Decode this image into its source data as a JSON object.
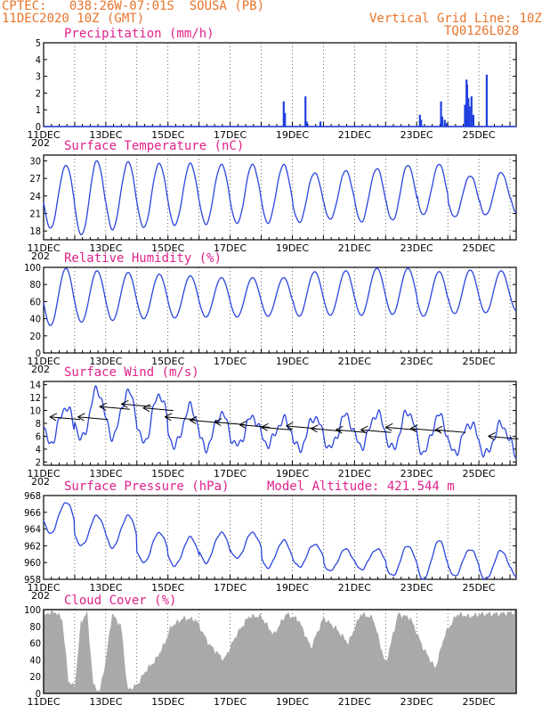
{
  "header": {
    "left_line1": "CPTEC:   038:26W-07:01S  SOUSA (PB)",
    "left_line2": "11DEC2020 10Z (GMT)",
    "right_line1": "Vertical Grid Line: 10Z",
    "right_line2": "TQ0126L028"
  },
  "x_axis": {
    "date_labels": [
      "11DEC",
      "13DEC",
      "15DEC",
      "17DEC",
      "19DEC",
      "21DEC",
      "23DEC",
      "25DEC"
    ],
    "year_fragment": "202"
  },
  "chart_data": [
    {
      "type": "bar",
      "title": "Precipitation (mm/h)",
      "ylim": [
        0,
        5
      ],
      "yticks": [
        0,
        1,
        2,
        3,
        4,
        5
      ],
      "color": "#1f3fe0",
      "x_unit": "days after 11DEC 10Z",
      "events": [
        {
          "x": 7.72,
          "v": 1.5
        },
        {
          "x": 7.76,
          "v": 0.8
        },
        {
          "x": 8.42,
          "v": 1.8
        },
        {
          "x": 8.46,
          "v": 0.3
        },
        {
          "x": 8.9,
          "v": 0.3
        },
        {
          "x": 12.1,
          "v": 0.7
        },
        {
          "x": 12.14,
          "v": 0.4
        },
        {
          "x": 12.78,
          "v": 1.5
        },
        {
          "x": 12.82,
          "v": 0.6
        },
        {
          "x": 12.9,
          "v": 0.4
        },
        {
          "x": 12.95,
          "v": 0.2
        },
        {
          "x": 13.55,
          "v": 1.3
        },
        {
          "x": 13.6,
          "v": 2.8
        },
        {
          "x": 13.62,
          "v": 2.5
        },
        {
          "x": 13.66,
          "v": 1.7
        },
        {
          "x": 13.7,
          "v": 1.2
        },
        {
          "x": 13.76,
          "v": 1.8
        },
        {
          "x": 13.82,
          "v": 0.7
        },
        {
          "x": 14.25,
          "v": 3.1
        }
      ]
    },
    {
      "type": "line",
      "title": "Surface Temperature (nC)",
      "ylim": [
        16.5,
        31
      ],
      "yticks": [
        18,
        21,
        24,
        27,
        30
      ],
      "color": "#2b45dd",
      "days_range": [
        0,
        15.2
      ],
      "daily_max": [
        29.3,
        30.0,
        29.8,
        29.6,
        29.5,
        29.4,
        29.4,
        29.3,
        28.0,
        28.3,
        28.7,
        29.3,
        29.4,
        27.5,
        28.0,
        28.0
      ],
      "daily_min": [
        18.5,
        17.3,
        18.3,
        18.6,
        19.0,
        19.2,
        19.3,
        19.4,
        19.5,
        20.0,
        19.6,
        19.8,
        20.8,
        20.4,
        20.7,
        21.2
      ]
    },
    {
      "type": "line",
      "title": "Relative Humidity (%)",
      "ylim": [
        0,
        100
      ],
      "yticks": [
        0,
        20,
        40,
        60,
        80,
        100
      ],
      "color": "#2b45dd",
      "days_range": [
        0,
        15.2
      ],
      "daily_max": [
        99,
        96,
        94,
        92,
        90,
        88,
        88,
        88,
        95,
        96,
        99,
        99,
        95,
        97,
        96,
        94
      ],
      "daily_min": [
        32,
        36,
        38,
        40,
        41,
        42,
        42,
        43,
        43,
        44,
        44,
        45,
        43,
        46,
        47,
        49
      ]
    },
    {
      "type": "line",
      "title": "Surface Wind (m/s)",
      "ylim": [
        1.5,
        14.5
      ],
      "yticks": [
        2,
        4,
        6,
        8,
        10,
        12,
        14
      ],
      "color": "#2b45dd",
      "days_range": [
        0,
        15.2
      ],
      "daily_max": [
        10.5,
        13.2,
        12.8,
        12.5,
        10.5,
        9.5,
        9.0,
        8.5,
        9.0,
        9.2,
        9.5,
        9.8,
        9.2,
        8.0,
        7.8,
        9.0
      ],
      "daily_min": [
        5.0,
        5.5,
        6.0,
        5.0,
        4.5,
        4.2,
        4.5,
        4.8,
        4.0,
        4.2,
        4.5,
        4.0,
        3.5,
        3.5,
        3.2,
        3.2
      ],
      "arrows": [
        {
          "day": 0.2,
          "level": 9.0
        },
        {
          "day": 1.1,
          "level": 9.0
        },
        {
          "day": 1.8,
          "level": 10.6
        },
        {
          "day": 2.5,
          "level": 11.0
        },
        {
          "day": 3.2,
          "level": 10.4
        },
        {
          "day": 3.9,
          "level": 9.0
        },
        {
          "day": 4.7,
          "level": 8.5
        },
        {
          "day": 5.5,
          "level": 8.2
        },
        {
          "day": 6.3,
          "level": 7.8
        },
        {
          "day": 7.0,
          "level": 7.4
        },
        {
          "day": 7.8,
          "level": 7.6
        },
        {
          "day": 8.6,
          "level": 7.2
        },
        {
          "day": 9.4,
          "level": 7.0
        },
        {
          "day": 10.2,
          "level": 7.0
        },
        {
          "day": 11.0,
          "level": 7.4
        },
        {
          "day": 11.8,
          "level": 7.2
        },
        {
          "day": 12.6,
          "level": 7.0
        },
        {
          "day": 14.3,
          "level": 6.0
        }
      ]
    },
    {
      "type": "line",
      "title": "Surface Pressure (hPa)",
      "annotation": "Model Altitude: 421.544 m",
      "ylim": [
        958,
        968
      ],
      "yticks": [
        958,
        960,
        962,
        964,
        966,
        968
      ],
      "color": "#2b45dd",
      "days_range": [
        0,
        15.2
      ],
      "daily_max": [
        967.2,
        965.6,
        965.6,
        963.6,
        963.0,
        963.6,
        963.6,
        962.6,
        962.2,
        961.6,
        961.6,
        962.0,
        962.6,
        961.6,
        961.4,
        961.0
      ],
      "daily_min": [
        963.5,
        962.0,
        961.8,
        960.0,
        959.6,
        960.0,
        960.5,
        959.4,
        959.5,
        959.0,
        959.2,
        958.4,
        958.0,
        958.4,
        958.0,
        958.4
      ]
    },
    {
      "type": "area",
      "title": "Cloud Cover (%)",
      "ylim": [
        0,
        100
      ],
      "yticks": [
        0,
        20,
        40,
        60,
        80,
        100
      ],
      "color": "#a9a9a9",
      "days_range": [
        0,
        15.2
      ],
      "profile": [
        [
          0,
          88
        ],
        [
          0.1,
          96
        ],
        [
          0.4,
          97
        ],
        [
          0.6,
          88
        ],
        [
          0.8,
          15
        ],
        [
          1.0,
          8
        ],
        [
          1.2,
          85
        ],
        [
          1.4,
          97
        ],
        [
          1.6,
          10
        ],
        [
          1.8,
          2
        ],
        [
          2.0,
          40
        ],
        [
          2.2,
          95
        ],
        [
          2.5,
          80
        ],
        [
          2.7,
          4
        ],
        [
          3.0,
          10
        ],
        [
          3.3,
          28
        ],
        [
          3.6,
          40
        ],
        [
          3.9,
          60
        ],
        [
          4.1,
          80
        ],
        [
          4.5,
          90
        ],
        [
          4.9,
          88
        ],
        [
          5.3,
          60
        ],
        [
          5.8,
          40
        ],
        [
          6.2,
          70
        ],
        [
          6.6,
          92
        ],
        [
          7.0,
          92
        ],
        [
          7.4,
          70
        ],
        [
          7.8,
          95
        ],
        [
          8.2,
          88
        ],
        [
          8.6,
          55
        ],
        [
          9.0,
          90
        ],
        [
          9.4,
          78
        ],
        [
          9.8,
          60
        ],
        [
          10.2,
          95
        ],
        [
          10.6,
          90
        ],
        [
          11.0,
          35
        ],
        [
          11.4,
          95
        ],
        [
          11.8,
          90
        ],
        [
          12.2,
          55
        ],
        [
          12.6,
          30
        ],
        [
          12.9,
          70
        ],
        [
          13.3,
          95
        ],
        [
          13.7,
          92
        ],
        [
          14.1,
          95
        ],
        [
          14.6,
          95
        ],
        [
          15.2,
          97
        ]
      ]
    }
  ]
}
